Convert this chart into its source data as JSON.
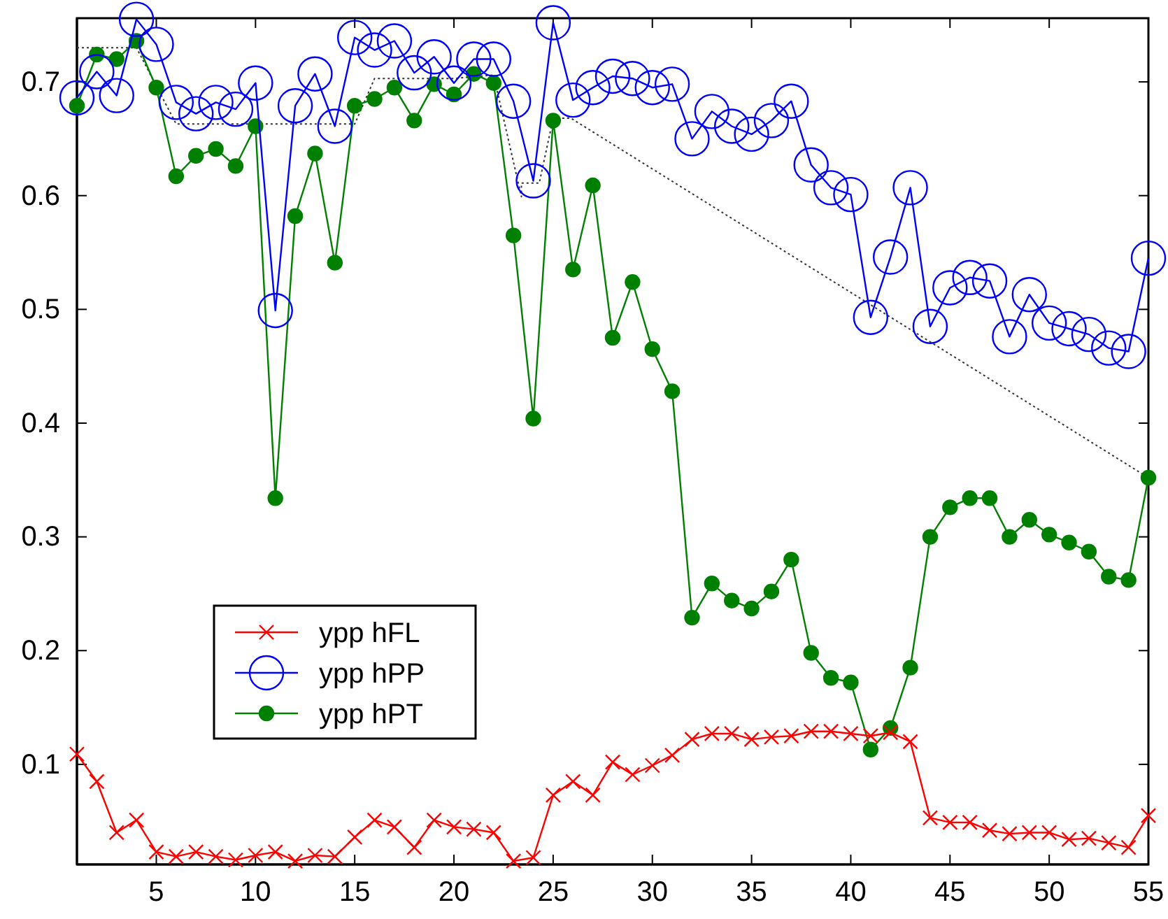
{
  "chart_data": {
    "type": "line",
    "x": [
      1,
      2,
      3,
      4,
      5,
      6,
      7,
      8,
      9,
      10,
      11,
      12,
      13,
      14,
      15,
      16,
      17,
      18,
      19,
      20,
      21,
      22,
      23,
      24,
      25,
      26,
      27,
      28,
      29,
      30,
      31,
      32,
      33,
      34,
      35,
      36,
      37,
      38,
      39,
      40,
      41,
      42,
      43,
      44,
      45,
      46,
      47,
      48,
      49,
      50,
      51,
      52,
      53,
      54,
      55
    ],
    "xlim": [
      1,
      55
    ],
    "xticks": [
      5,
      10,
      15,
      20,
      25,
      30,
      35,
      40,
      45,
      50,
      55
    ],
    "ylim": [
      0.012,
      0.756
    ],
    "yticks": [
      0.1,
      0.2,
      0.3,
      0.4,
      0.5,
      0.6,
      0.7
    ],
    "grid": false,
    "legend": "bottom left",
    "line_style": "solid",
    "series": [
      {
        "name": "ypp hFL",
        "color": "#ff0000",
        "marker": "cross",
        "values": [
          0.109,
          0.085,
          0.04,
          0.051,
          0.023,
          0.019,
          0.023,
          0.019,
          0.016,
          0.02,
          0.023,
          0.015,
          0.02,
          0.019,
          0.036,
          0.051,
          0.045,
          0.027,
          0.051,
          0.045,
          0.043,
          0.04,
          0.015,
          0.018,
          0.073,
          0.085,
          0.073,
          0.102,
          0.091,
          0.099,
          0.108,
          0.122,
          0.127,
          0.127,
          0.122,
          0.124,
          0.125,
          0.129,
          0.129,
          0.127,
          0.125,
          0.128,
          0.12,
          0.053,
          0.049,
          0.049,
          0.042,
          0.039,
          0.04,
          0.04,
          0.034,
          0.035,
          0.031,
          0.027,
          0.055
        ]
      },
      {
        "name": "ypp hPP",
        "color": "#0000ff",
        "marker": "circle",
        "values": [
          0.686,
          0.709,
          0.688,
          0.755,
          0.733,
          0.682,
          0.672,
          0.682,
          0.676,
          0.699,
          0.499,
          0.679,
          0.707,
          0.661,
          0.739,
          0.728,
          0.736,
          0.708,
          0.722,
          0.699,
          0.72,
          0.72,
          0.683,
          0.613,
          0.752,
          0.684,
          0.695,
          0.705,
          0.703,
          0.695,
          0.698,
          0.65,
          0.674,
          0.661,
          0.654,
          0.666,
          0.683,
          0.627,
          0.607,
          0.601,
          0.493,
          0.546,
          0.607,
          0.485,
          0.519,
          0.528,
          0.525,
          0.476,
          0.513,
          0.488,
          0.483,
          0.478,
          0.466,
          0.463,
          0.545
        ]
      },
      {
        "name": "ypp hPT",
        "color": "#008000",
        "marker": "circle",
        "values": [
          0.679,
          0.724,
          0.72,
          0.736,
          0.695,
          0.617,
          0.635,
          0.641,
          0.626,
          0.661,
          0.334,
          0.582,
          0.637,
          0.541,
          0.679,
          0.685,
          0.695,
          0.666,
          0.698,
          0.689,
          0.707,
          0.699,
          0.565,
          0.404,
          0.666,
          0.535,
          0.609,
          0.475,
          0.524,
          0.465,
          0.428,
          0.229,
          0.259,
          0.244,
          0.237,
          0.252,
          0.28,
          0.198,
          0.176,
          0.172,
          0.113,
          0.132,
          0.185,
          0.3,
          0.326,
          0.334,
          0.334,
          0.3,
          0.315,
          0.302,
          0.295,
          0.287,
          0.265,
          0.262,
          0.352
        ]
      },
      {
        "color": "#333333",
        "marker": "none",
        "line_style": "dotted",
        "x": [
          1,
          4,
          6,
          15,
          16,
          20,
          22,
          23.4,
          23.4,
          24.3,
          25,
          25.9,
          55
        ],
        "values": [
          0.73,
          0.73,
          0.663,
          0.663,
          0.703,
          0.703,
          0.706,
          0.599,
          0.611,
          0.611,
          0.668,
          0.668,
          0.352
        ]
      }
    ]
  }
}
